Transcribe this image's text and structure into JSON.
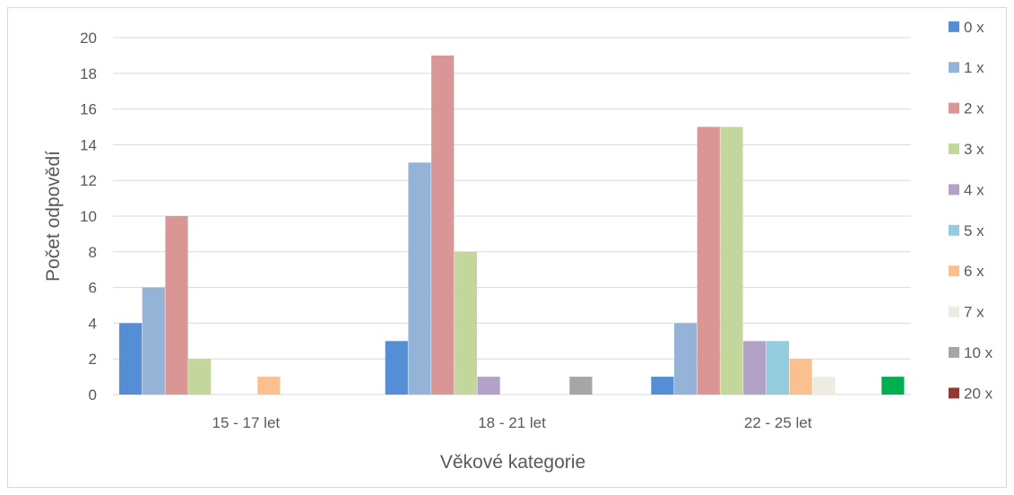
{
  "chart_data": {
    "type": "bar",
    "title": "",
    "xlabel": "Věkové kategorie",
    "ylabel": "Počet odpovědí",
    "ylim": [
      0,
      20
    ],
    "yticks": [
      0,
      2,
      4,
      6,
      8,
      10,
      12,
      14,
      16,
      18,
      20
    ],
    "categories": [
      "15 - 17 let",
      "18 - 21 let",
      "22 - 25 let"
    ],
    "grid": true,
    "legend_position": "right",
    "series": [
      {
        "name": "0 x",
        "color": "#558ed5",
        "values": [
          4,
          3,
          1
        ]
      },
      {
        "name": "1 x",
        "color": "#95b3d7",
        "values": [
          6,
          13,
          4
        ]
      },
      {
        "name": "2 x",
        "color": "#d99694",
        "values": [
          10,
          19,
          15
        ]
      },
      {
        "name": "3 x",
        "color": "#c3d69b",
        "values": [
          2,
          8,
          15
        ]
      },
      {
        "name": "4 x",
        "color": "#b3a2c7",
        "values": [
          0,
          1,
          3
        ]
      },
      {
        "name": "5 x",
        "color": "#93cddd",
        "values": [
          0,
          0,
          3
        ]
      },
      {
        "name": "6 x",
        "color": "#fac090",
        "values": [
          1,
          0,
          2
        ]
      },
      {
        "name": "7 x",
        "color": "#eeece1",
        "values": [
          0,
          0,
          1
        ]
      },
      {
        "name": "10 x",
        "color": "#a6a6a6",
        "values": [
          0,
          1,
          0
        ]
      },
      {
        "name": "20 x",
        "color": "#953735",
        "values": [
          0,
          0,
          0
        ]
      },
      {
        "name": "",
        "color": "#00b050",
        "values": [
          0,
          0,
          1
        ]
      }
    ]
  }
}
